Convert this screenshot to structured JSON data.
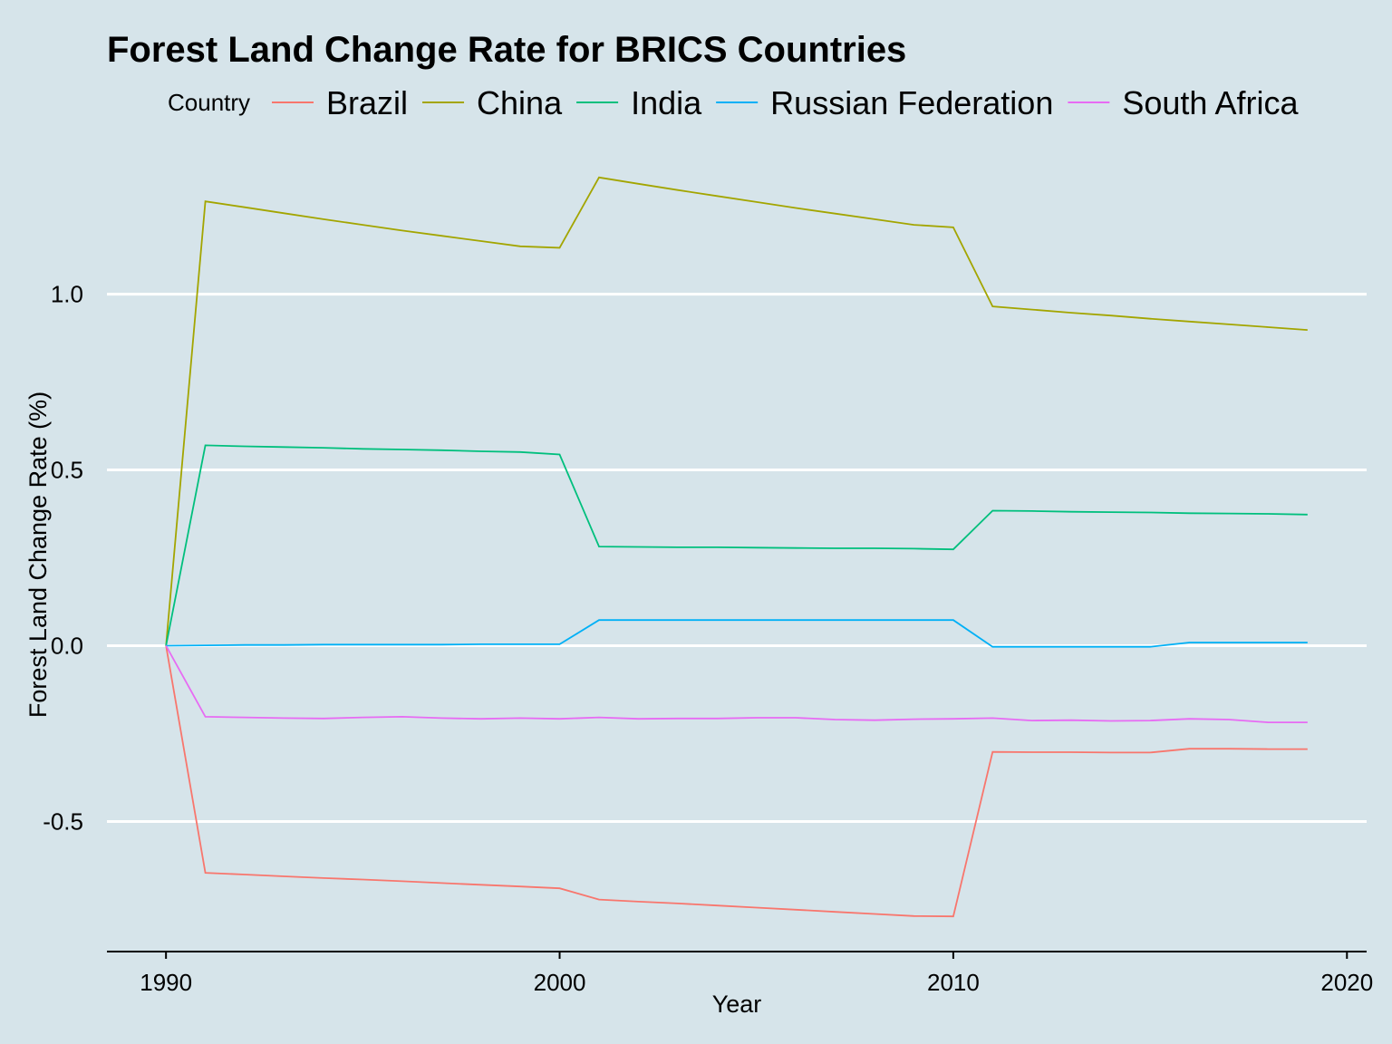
{
  "chart_data": {
    "type": "line",
    "title": "Forest Land Change Rate for BRICS Countries",
    "xlabel": "Year",
    "ylabel": "Forest Land Change Rate (%)",
    "xlim": [
      1988.5,
      2020.5
    ],
    "ylim": [
      -0.87,
      1.45
    ],
    "x_ticks": [
      1990,
      2000,
      2010,
      2020
    ],
    "y_ticks": [
      -0.5,
      0.0,
      0.5,
      1.0
    ],
    "x_tick_labels": [
      "1990",
      "2000",
      "2010",
      "2020"
    ],
    "y_tick_labels": [
      "-0.5",
      "0.0",
      "0.5",
      "1.0"
    ],
    "grid": "horizontal major lines only",
    "legend": {
      "title": "Country",
      "placement": "top"
    },
    "x": [
      1990,
      1991,
      1992,
      1993,
      1994,
      1995,
      1996,
      1997,
      1998,
      1999,
      2000,
      2001,
      2002,
      2003,
      2004,
      2005,
      2006,
      2007,
      2008,
      2009,
      2010,
      2011,
      2012,
      2013,
      2014,
      2015,
      2016,
      2017,
      2018,
      2019
    ],
    "series": [
      {
        "name": "Brazil",
        "color": "#F8766D",
        "values": [
          0,
          -0.646,
          -0.651,
          -0.656,
          -0.661,
          -0.665,
          -0.67,
          -0.675,
          -0.68,
          -0.685,
          -0.69,
          -0.722,
          -0.728,
          -0.733,
          -0.739,
          -0.745,
          -0.751,
          -0.757,
          -0.763,
          -0.769,
          -0.77,
          -0.302,
          -0.303,
          -0.303,
          -0.304,
          -0.304,
          -0.293,
          -0.293,
          -0.294,
          -0.294
        ]
      },
      {
        "name": "China",
        "color": "#A3A500",
        "values": [
          0,
          1.264,
          1.247,
          1.23,
          1.213,
          1.197,
          1.181,
          1.166,
          1.151,
          1.136,
          1.132,
          1.332,
          1.314,
          1.296,
          1.279,
          1.262,
          1.245,
          1.229,
          1.213,
          1.197,
          1.19,
          0.965,
          0.956,
          0.947,
          0.939,
          0.93,
          0.922,
          0.914,
          0.906,
          0.898
        ]
      },
      {
        "name": "India",
        "color": "#00BF7D",
        "values": [
          0,
          0.57,
          0.567,
          0.565,
          0.563,
          0.56,
          0.558,
          0.556,
          0.553,
          0.551,
          0.544,
          0.282,
          0.281,
          0.28,
          0.28,
          0.279,
          0.278,
          0.277,
          0.277,
          0.276,
          0.274,
          0.384,
          0.383,
          0.381,
          0.38,
          0.379,
          0.377,
          0.376,
          0.375,
          0.373
        ]
      },
      {
        "name": "Russian Federation",
        "color": "#00B0F6",
        "values": [
          0,
          0.001,
          0.002,
          0.002,
          0.003,
          0.003,
          0.003,
          0.003,
          0.004,
          0.004,
          0.004,
          0.073,
          0.073,
          0.073,
          0.073,
          0.073,
          0.073,
          0.073,
          0.073,
          0.073,
          0.073,
          -0.003,
          -0.003,
          -0.003,
          -0.003,
          -0.003,
          0.009,
          0.009,
          0.009,
          0.009
        ]
      },
      {
        "name": "South Africa",
        "color": "#E76BF3",
        "values": [
          0,
          -0.202,
          -0.204,
          -0.206,
          -0.207,
          -0.204,
          -0.202,
          -0.206,
          -0.208,
          -0.206,
          -0.208,
          -0.204,
          -0.208,
          -0.207,
          -0.207,
          -0.205,
          -0.205,
          -0.21,
          -0.212,
          -0.209,
          -0.208,
          -0.206,
          -0.213,
          -0.212,
          -0.214,
          -0.213,
          -0.208,
          -0.21,
          -0.218,
          -0.218
        ]
      }
    ]
  }
}
